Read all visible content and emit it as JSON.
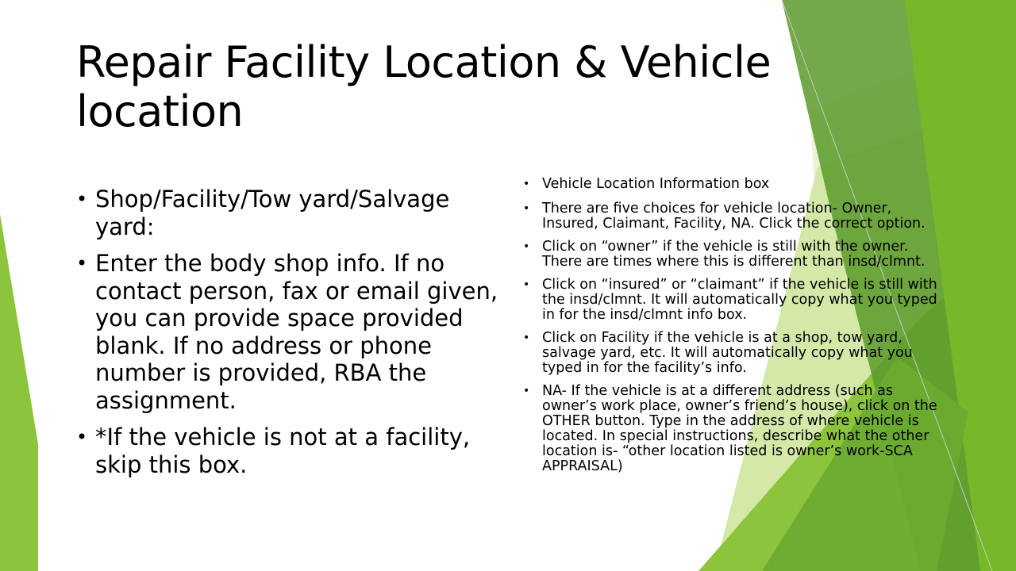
{
  "slide": {
    "title": "Repair Facility Location & Vehicle location",
    "bullet_glyph": "•",
    "left_bullets": [
      "Shop/Facility/Tow yard/Salvage yard:",
      "Enter the body shop info. If no contact person, fax or email given, you can provide space provided blank. If no address or phone number is provided, RBA the assignment.",
      "*If the vehicle is not at a facility, skip this box."
    ],
    "right_bullets": [
      "Vehicle Location Information box",
      "There are five choices for vehicle location- Owner, Insured, Claimant, Facility, NA. Click the correct option.",
      "Click on “owner” if the vehicle is still with the owner. There are times where this is different than insd/clmnt.",
      "Click on “insured” or “claimant” if the vehicle is still with the insd/clmnt. It will automatically copy what you typed in for the insd/clmnt info box.",
      "Click on Facility if the vehicle is at a shop, tow yard, salvage yard, etc. It will automatically copy what you typed in for the facility’s info.",
      "NA- If the vehicle is at a different address (such as owner’s work place, owner’s friend’s house), click on the OTHER button. Type in the address of where vehicle is located. In special instructions, describe what the other location is- “other location listed is owner’s work-SCA APPRAISAL)"
    ]
  },
  "theme": {
    "accent_light": "#d4e8a8",
    "accent_mid": "#8cc43c",
    "accent_bright": "#76b82a",
    "accent_dark": "#5a9a2a",
    "accent_shadow": "#4a8a2a"
  }
}
